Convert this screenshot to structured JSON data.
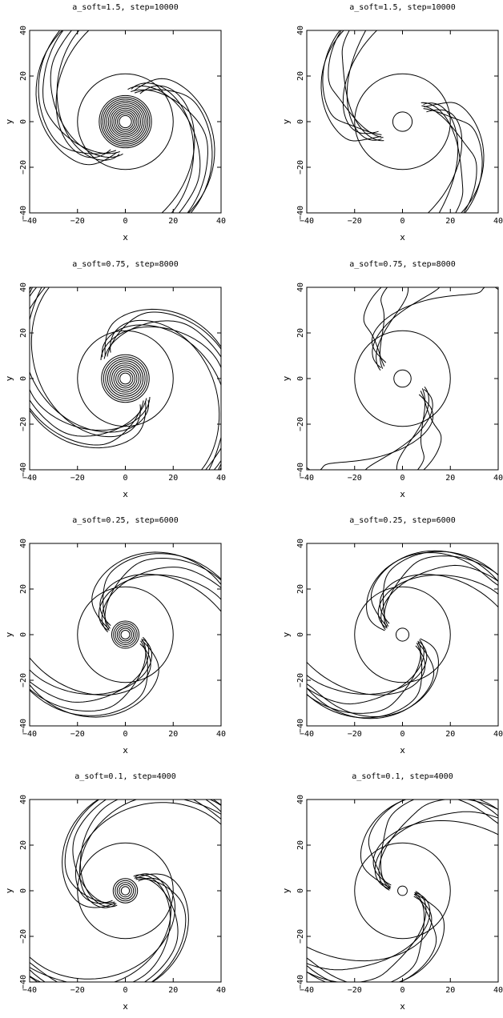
{
  "chart_data": [
    {
      "type": "contour",
      "title": "a_soft=1.5, step=10000",
      "xlabel": "x",
      "ylabel": "y",
      "xlim": [
        -40,
        40
      ],
      "ylim": [
        -40,
        40
      ],
      "xticks": [
        "−40",
        "−20",
        "0",
        "20",
        "40"
      ],
      "yticks": [
        "−40",
        "−20",
        "0",
        "20",
        "40"
      ]
    },
    {
      "type": "contour",
      "title": "a_soft=1.5, step=10000",
      "xlabel": "x",
      "ylabel": "y",
      "xlim": [
        -40,
        40
      ],
      "ylim": [
        -40,
        40
      ],
      "xticks": [
        "−40",
        "−20",
        "0",
        "20",
        "40"
      ],
      "yticks": [
        "−40",
        "−20",
        "0",
        "20",
        "40"
      ]
    },
    {
      "type": "contour",
      "title": "a_soft=0.75, step=8000",
      "xlabel": "x",
      "ylabel": "y",
      "xlim": [
        -40,
        40
      ],
      "ylim": [
        -40,
        40
      ],
      "xticks": [
        "−40",
        "−20",
        "0",
        "20",
        "40"
      ],
      "yticks": [
        "−40",
        "−20",
        "0",
        "20",
        "40"
      ]
    },
    {
      "type": "contour",
      "title": "a_soft=0.75, step=8000",
      "xlabel": "x",
      "ylabel": "y",
      "xlim": [
        -40,
        40
      ],
      "ylim": [
        -40,
        40
      ],
      "xticks": [
        "−40",
        "−20",
        "0",
        "20",
        "40"
      ],
      "yticks": [
        "−40",
        "−20",
        "0",
        "20",
        "40"
      ]
    },
    {
      "type": "contour",
      "title": "a_soft=0.25, step=6000",
      "xlabel": "x",
      "ylabel": "y",
      "xlim": [
        -40,
        40
      ],
      "ylim": [
        -40,
        40
      ],
      "xticks": [
        "−40",
        "−20",
        "0",
        "20",
        "40"
      ],
      "yticks": [
        "−40",
        "−20",
        "0",
        "20",
        "40"
      ]
    },
    {
      "type": "contour",
      "title": "a_soft=0.25, step=6000",
      "xlabel": "x",
      "ylabel": "y",
      "xlim": [
        -40,
        40
      ],
      "ylim": [
        -40,
        40
      ],
      "xticks": [
        "−40",
        "−20",
        "0",
        "20",
        "40"
      ],
      "yticks": [
        "−40",
        "−20",
        "0",
        "20",
        "40"
      ]
    },
    {
      "type": "contour",
      "title": "a_soft=0.1, step=4000",
      "xlabel": "x",
      "ylabel": "y",
      "xlim": [
        -40,
        40
      ],
      "ylim": [
        -40,
        40
      ],
      "xticks": [
        "−40",
        "−20",
        "0",
        "20",
        "40"
      ],
      "yticks": [
        "−40",
        "−20",
        "0",
        "20",
        "40"
      ]
    },
    {
      "type": "contour",
      "title": "a_soft=0.1, step=4000",
      "xlabel": "x",
      "ylabel": "y",
      "xlim": [
        -40,
        40
      ],
      "ylim": [
        -40,
        40
      ],
      "xticks": [
        "−40",
        "−20",
        "0",
        "20",
        "40"
      ],
      "yticks": [
        "−40",
        "−20",
        "0",
        "20",
        "40"
      ]
    }
  ]
}
